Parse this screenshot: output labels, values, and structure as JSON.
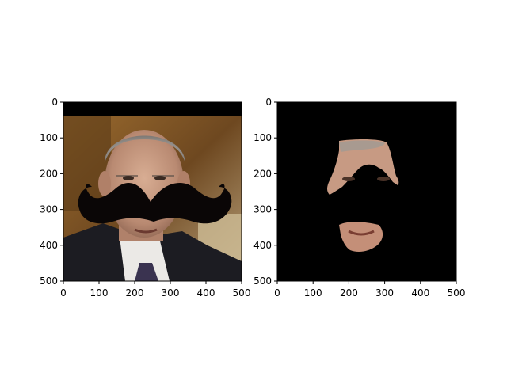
{
  "chart_data": [
    {
      "type": "image",
      "content": "portrait with black mustache overlay",
      "xlim": [
        0,
        500
      ],
      "ylim": [
        500,
        0
      ],
      "xticks": [
        0,
        100,
        200,
        300,
        400,
        500
      ],
      "yticks": [
        0,
        100,
        200,
        300,
        400,
        500
      ],
      "xtick_labels": [
        "0",
        "100",
        "200",
        "300",
        "400",
        "500"
      ],
      "ytick_labels": [
        "0",
        "100",
        "200",
        "300",
        "400",
        "500"
      ],
      "grid": false
    },
    {
      "type": "image",
      "content": "segmented face regions on black background",
      "xlim": [
        0,
        500
      ],
      "ylim": [
        500,
        0
      ],
      "xticks": [
        0,
        100,
        200,
        300,
        400,
        500
      ],
      "yticks": [
        0,
        100,
        200,
        300,
        400,
        500
      ],
      "xtick_labels": [
        "0",
        "100",
        "200",
        "300",
        "400",
        "500"
      ],
      "ytick_labels": [
        "0",
        "100",
        "200",
        "300",
        "400",
        "500"
      ],
      "grid": false
    }
  ],
  "colors": {
    "figure_background": "#ffffff",
    "axes_frame": "#000000",
    "mask_background": "#000000",
    "mustache": "#0a0606",
    "skin": "#c79a83",
    "hair": "#9a9692",
    "suit": "#1c1c22",
    "backdrop": "#7a5226"
  }
}
